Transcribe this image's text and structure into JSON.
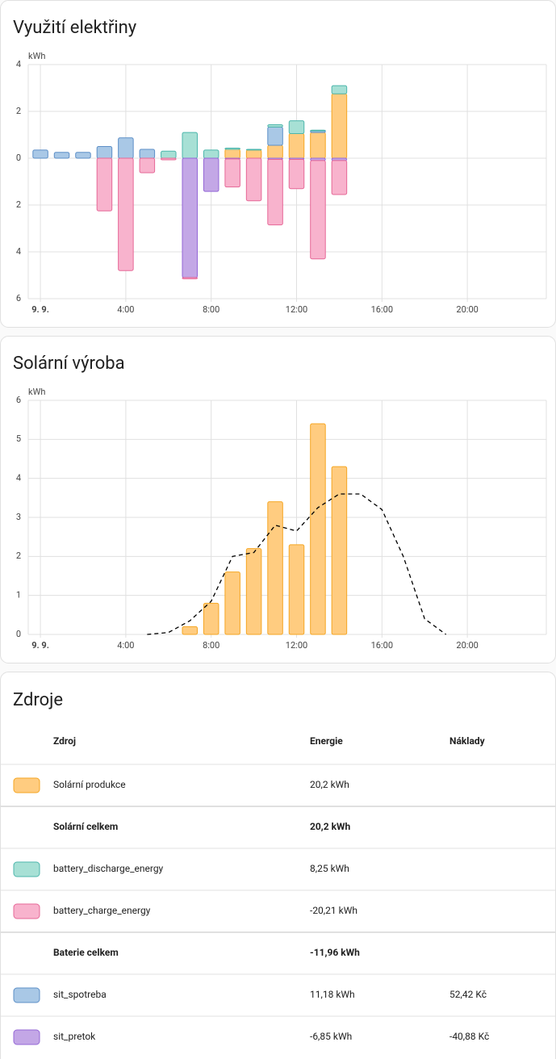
{
  "chart_data": [
    {
      "type": "bar",
      "title": "Využití elektřiny",
      "unit": "kWh",
      "stacked": true,
      "grid": true,
      "x": [
        0,
        1,
        2,
        3,
        4,
        5,
        6,
        7,
        8,
        9,
        10,
        11,
        12,
        13,
        14
      ],
      "xlim": [
        -0.57,
        23.7
      ],
      "xticks": [
        {
          "value": 0,
          "label": "9. 9."
        },
        {
          "value": 4,
          "label": "4:00"
        },
        {
          "value": 8,
          "label": "8:00"
        },
        {
          "value": 12,
          "label": "12:00"
        },
        {
          "value": 16,
          "label": "16:00"
        },
        {
          "value": 20,
          "label": "20:00"
        }
      ],
      "ylim": [
        -6,
        4
      ],
      "yticks": [
        4,
        2,
        0,
        {
          "value": -2,
          "label": "2"
        },
        {
          "value": -4,
          "label": "4"
        },
        {
          "value": -6,
          "label": "6"
        }
      ],
      "series": [
        {
          "color": "#ffcc80",
          "border": "#f5a623",
          "values": [
            0,
            0,
            0,
            0,
            0,
            0,
            0,
            0,
            0,
            0.38,
            0.35,
            0.55,
            1.05,
            1.1,
            2.75
          ]
        },
        {
          "color": "#a9c8e6",
          "border": "#5d8fc7",
          "values": [
            0.35,
            0.25,
            0.25,
            0.5,
            0.87,
            0.38,
            0,
            0,
            0,
            0,
            0,
            0.78,
            0,
            0.07,
            0
          ]
        },
        {
          "color": "#a7e0d5",
          "border": "#4db6ac",
          "values": [
            0,
            0,
            0,
            0,
            0,
            0,
            0.3,
            1.1,
            0.35,
            0.05,
            0.03,
            0.1,
            0.55,
            0.03,
            0.35
          ]
        },
        {
          "color": "#c3a7e6",
          "border": "#9467d6",
          "values": [
            0,
            0,
            0,
            0,
            0,
            0,
            0,
            -5.1,
            -1.42,
            -0.03,
            0,
            -0.05,
            -0.05,
            -0.1,
            -0.1
          ]
        },
        {
          "color": "#f8b3cd",
          "border": "#e66897",
          "values": [
            0,
            0,
            0,
            -2.25,
            -4.8,
            -0.62,
            -0.07,
            -0.05,
            0,
            -1.2,
            -1.82,
            -2.8,
            -1.25,
            -4.2,
            -1.45
          ]
        }
      ]
    },
    {
      "type": "bar",
      "title": "Solární výroba",
      "unit": "kWh",
      "grid": true,
      "xlim": [
        -0.57,
        23.7
      ],
      "xticks": [
        {
          "value": 0,
          "label": "9. 9."
        },
        {
          "value": 4,
          "label": "4:00"
        },
        {
          "value": 8,
          "label": "8:00"
        },
        {
          "value": 12,
          "label": "12:00"
        },
        {
          "value": 16,
          "label": "16:00"
        },
        {
          "value": 20,
          "label": "20:00"
        }
      ],
      "ylim": [
        0,
        6
      ],
      "yticks": [
        0,
        1,
        2,
        3,
        4,
        5,
        6
      ],
      "series": [
        {
          "color": "#ffcc80",
          "border": "#f5a623",
          "x": [
            7,
            8,
            9,
            10,
            11,
            12,
            13,
            14
          ],
          "values": [
            0.2,
            0.8,
            1.6,
            2.2,
            3.4,
            2.3,
            5.4,
            4.3
          ]
        },
        {
          "type": "line",
          "dashed": true,
          "color": "#000000",
          "x": [
            5,
            6,
            7,
            8,
            9,
            10,
            11,
            12,
            13,
            14,
            15,
            16,
            17,
            18,
            19
          ],
          "values": [
            0,
            0.05,
            0.35,
            0.85,
            2.0,
            2.1,
            2.8,
            2.65,
            3.25,
            3.6,
            3.6,
            3.2,
            2.0,
            0.4,
            0
          ]
        }
      ]
    }
  ],
  "table": {
    "title": "Zdroje",
    "headers": [
      "Zdroj",
      "Energie",
      "Náklady"
    ],
    "rows": [
      {
        "color": "#ffcc80",
        "border": "#f5a623",
        "source": "Solární produkce",
        "energy": "20,2 kWh"
      },
      {
        "total": true,
        "source": "Solární celkem",
        "energy": "20,2 kWh"
      },
      {
        "color": "#a7e0d5",
        "border": "#4db6ac",
        "source": "battery_discharge_energy",
        "energy": "8,25 kWh"
      },
      {
        "color": "#f8b3cd",
        "border": "#e66897",
        "source": "battery_charge_energy",
        "energy": "-20,21 kWh"
      },
      {
        "total": true,
        "source": "Baterie celkem",
        "energy": "-11,96 kWh"
      },
      {
        "color": "#a9c8e6",
        "border": "#5d8fc7",
        "source": "sit_spotreba",
        "energy": "11,18 kWh",
        "cost": "52,42 Kč"
      },
      {
        "color": "#c3a7e6",
        "border": "#9467d6",
        "source": "sit_pretok",
        "energy": "-6,85 kWh",
        "cost": "-40,88 Kč"
      }
    ]
  }
}
